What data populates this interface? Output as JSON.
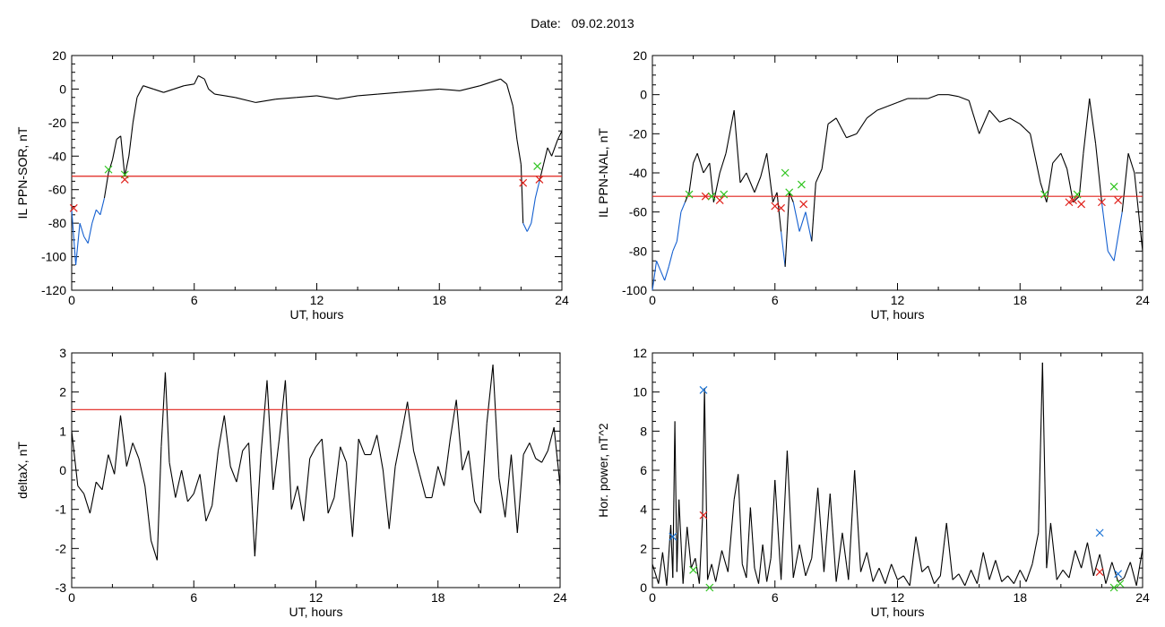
{
  "header": {
    "date_label": "Date:",
    "date_value": "09.02.2013"
  },
  "colors": {
    "data_line": "#000000",
    "below_threshold": "#1560d0",
    "threshold": "#e0201a",
    "mark_green": "#2fc41f",
    "mark_red": "#e0201a",
    "mark_blue": "#1a73d6"
  },
  "chart_data": [
    {
      "id": "sor",
      "type": "line",
      "ylabel": "IL PPN-SOR, nT",
      "xlabel": "UT, hours",
      "xlim": [
        0,
        24
      ],
      "ylim": [
        -120,
        20
      ],
      "xticks": [
        0,
        6,
        12,
        18,
        24
      ],
      "yticks": [
        -120,
        -100,
        -80,
        -60,
        -40,
        -20,
        0,
        20
      ],
      "threshold": -52,
      "series": [
        {
          "x": [
            0,
            0.2,
            0.4,
            0.6,
            0.8,
            1.0,
            1.2,
            1.4,
            1.6,
            1.8,
            2.0,
            2.2,
            2.4,
            2.6,
            2.8,
            3.0,
            3.2,
            3.5,
            4,
            4.5,
            5,
            5.5,
            6,
            6.2,
            6.5,
            6.7,
            7,
            8,
            9,
            10,
            11,
            12,
            13,
            14,
            15,
            16,
            17,
            18,
            19,
            20,
            20.5,
            21,
            21.3,
            21.6,
            21.8,
            22,
            22.1,
            22.3,
            22.5,
            22.7,
            22.9,
            23.1,
            23.3,
            23.5,
            23.8,
            24
          ],
          "y": [
            -72,
            -105,
            -80,
            -88,
            -92,
            -80,
            -72,
            -75,
            -65,
            -50,
            -42,
            -30,
            -28,
            -52,
            -40,
            -20,
            -5,
            2,
            0,
            -2,
            0,
            2,
            3,
            8,
            6,
            0,
            -3,
            -5,
            -8,
            -6,
            -5,
            -4,
            -6,
            -4,
            -3,
            -2,
            -1,
            0,
            -1,
            2,
            4,
            6,
            3,
            -10,
            -30,
            -45,
            -80,
            -85,
            -80,
            -65,
            -55,
            -45,
            -35,
            -40,
            -30,
            -25
          ]
        }
      ],
      "markers": [
        {
          "x": 1.8,
          "y": -48,
          "color": "green"
        },
        {
          "x": 2.6,
          "y": -51,
          "color": "green"
        },
        {
          "x": 2.6,
          "y": -54,
          "color": "red"
        },
        {
          "x": 0.1,
          "y": -71,
          "color": "red"
        },
        {
          "x": 22.1,
          "y": -56,
          "color": "red"
        },
        {
          "x": 22.8,
          "y": -46,
          "color": "green"
        },
        {
          "x": 22.9,
          "y": -54,
          "color": "red"
        }
      ]
    },
    {
      "id": "nal",
      "type": "line",
      "ylabel": "IL PPN-NAL, nT",
      "xlabel": "UT, hours",
      "xlim": [
        0,
        24
      ],
      "ylim": [
        -100,
        20
      ],
      "xticks": [
        0,
        6,
        12,
        18,
        24
      ],
      "yticks": [
        -100,
        -80,
        -60,
        -40,
        -20,
        0,
        20
      ],
      "threshold": -52,
      "series": [
        {
          "x": [
            0,
            0.2,
            0.4,
            0.6,
            0.8,
            1.0,
            1.2,
            1.4,
            1.6,
            1.8,
            2.0,
            2.2,
            2.5,
            2.8,
            3.0,
            3.3,
            3.6,
            4.0,
            4.3,
            4.6,
            5.0,
            5.3,
            5.6,
            5.9,
            6.1,
            6.3,
            6.5,
            6.7,
            6.9,
            7.2,
            7.5,
            7.8,
            8.0,
            8.3,
            8.6,
            9,
            9.5,
            10,
            10.5,
            11,
            11.5,
            12,
            12.5,
            13,
            13.5,
            14,
            14.5,
            15,
            15.5,
            16,
            16.5,
            17,
            17.5,
            18,
            18.5,
            19,
            19.3,
            19.6,
            20,
            20.3,
            20.6,
            20.9,
            21.1,
            21.4,
            21.7,
            22,
            22.3,
            22.6,
            23,
            23.3,
            23.6,
            24
          ],
          "y": [
            -100,
            -85,
            -90,
            -95,
            -88,
            -80,
            -75,
            -60,
            -55,
            -50,
            -35,
            -30,
            -40,
            -35,
            -55,
            -40,
            -30,
            -8,
            -45,
            -40,
            -50,
            -42,
            -30,
            -55,
            -50,
            -70,
            -88,
            -50,
            -55,
            -70,
            -60,
            -75,
            -45,
            -38,
            -15,
            -12,
            -22,
            -20,
            -12,
            -8,
            -6,
            -4,
            -2,
            -2,
            -2,
            0,
            0,
            -1,
            -3,
            -20,
            -8,
            -14,
            -12,
            -15,
            -20,
            -45,
            -55,
            -35,
            -30,
            -38,
            -55,
            -52,
            -30,
            -2,
            -25,
            -55,
            -80,
            -85,
            -60,
            -30,
            -40,
            -80
          ]
        }
      ],
      "markers": [
        {
          "x": 1.8,
          "y": -51,
          "color": "green"
        },
        {
          "x": 2.6,
          "y": -52,
          "color": "red"
        },
        {
          "x": 2.9,
          "y": -52,
          "color": "green"
        },
        {
          "x": 3.3,
          "y": -54,
          "color": "red"
        },
        {
          "x": 3.5,
          "y": -51,
          "color": "green"
        },
        {
          "x": 6.0,
          "y": -57,
          "color": "red"
        },
        {
          "x": 6.3,
          "y": -58,
          "color": "red"
        },
        {
          "x": 6.5,
          "y": -40,
          "color": "green"
        },
        {
          "x": 6.7,
          "y": -50,
          "color": "green"
        },
        {
          "x": 7.3,
          "y": -46,
          "color": "green"
        },
        {
          "x": 7.4,
          "y": -56,
          "color": "red"
        },
        {
          "x": 19.2,
          "y": -51,
          "color": "green"
        },
        {
          "x": 20.4,
          "y": -55,
          "color": "red"
        },
        {
          "x": 20.6,
          "y": -54,
          "color": "red"
        },
        {
          "x": 20.8,
          "y": -51,
          "color": "green"
        },
        {
          "x": 21.0,
          "y": -56,
          "color": "red"
        },
        {
          "x": 22.0,
          "y": -55,
          "color": "red"
        },
        {
          "x": 22.6,
          "y": -47,
          "color": "green"
        },
        {
          "x": 22.8,
          "y": -54,
          "color": "red"
        }
      ]
    },
    {
      "id": "deltax",
      "type": "line",
      "ylabel": "deltaX, nT",
      "xlabel": "UT, hours",
      "xlim": [
        0,
        24
      ],
      "ylim": [
        -3,
        3
      ],
      "xticks": [
        0,
        6,
        12,
        18,
        24
      ],
      "yticks": [
        -3,
        -2,
        -1,
        0,
        1,
        2,
        3
      ],
      "threshold": 1.55,
      "series": [
        {
          "x": [
            0,
            0.3,
            0.6,
            0.9,
            1.2,
            1.5,
            1.8,
            2.1,
            2.4,
            2.7,
            3.0,
            3.3,
            3.6,
            3.9,
            4.2,
            4.4,
            4.6,
            4.8,
            5.1,
            5.4,
            5.7,
            6.0,
            6.3,
            6.6,
            6.9,
            7.2,
            7.5,
            7.8,
            8.1,
            8.4,
            8.7,
            9.0,
            9.3,
            9.6,
            9.9,
            10.2,
            10.5,
            10.8,
            11.1,
            11.4,
            11.7,
            12.0,
            12.3,
            12.6,
            12.9,
            13.2,
            13.5,
            13.8,
            14.1,
            14.4,
            14.7,
            15.0,
            15.3,
            15.6,
            15.9,
            16.2,
            16.5,
            16.8,
            17.1,
            17.4,
            17.7,
            18.0,
            18.3,
            18.6,
            18.9,
            19.2,
            19.5,
            19.8,
            20.1,
            20.4,
            20.7,
            21.0,
            21.3,
            21.6,
            21.9,
            22.2,
            22.5,
            22.8,
            23.1,
            23.4,
            23.7,
            24
          ],
          "y": [
            1.0,
            -0.4,
            -0.6,
            -1.1,
            -0.3,
            -0.5,
            0.4,
            -0.1,
            1.4,
            0.1,
            0.7,
            0.3,
            -0.4,
            -1.8,
            -2.3,
            0.6,
            2.5,
            0.2,
            -0.7,
            0.0,
            -0.8,
            -0.6,
            -0.1,
            -1.3,
            -0.9,
            0.5,
            1.4,
            0.1,
            -0.3,
            0.5,
            0.7,
            -2.2,
            0.4,
            2.3,
            -0.5,
            0.8,
            2.3,
            -1.0,
            -0.4,
            -1.3,
            0.3,
            0.6,
            0.8,
            -1.1,
            -0.7,
            0.6,
            0.2,
            -1.7,
            0.8,
            0.4,
            0.4,
            0.9,
            0.0,
            -1.5,
            0.1,
            0.9,
            1.75,
            0.5,
            -0.1,
            -0.7,
            -0.7,
            0.1,
            -0.4,
            0.8,
            1.8,
            0.0,
            0.5,
            -0.8,
            -1.1,
            1.2,
            2.7,
            -0.2,
            -1.2,
            0.4,
            -1.6,
            0.4,
            0.7,
            0.3,
            0.2,
            0.5,
            1.1,
            -0.4
          ]
        }
      ],
      "markers": []
    },
    {
      "id": "power",
      "type": "line",
      "ylabel": "Hor. power, nT^2",
      "xlabel": "UT, hours",
      "xlim": [
        0,
        24
      ],
      "ylim": [
        0,
        12
      ],
      "xticks": [
        0,
        6,
        12,
        18,
        24
      ],
      "yticks": [
        0,
        2,
        4,
        6,
        8,
        10,
        12
      ],
      "threshold": null,
      "series": [
        {
          "x": [
            0,
            0.3,
            0.5,
            0.7,
            0.9,
            1.0,
            1.1,
            1.2,
            1.3,
            1.5,
            1.7,
            1.9,
            2.1,
            2.3,
            2.45,
            2.55,
            2.7,
            2.9,
            3.1,
            3.4,
            3.7,
            4.0,
            4.2,
            4.4,
            4.6,
            4.8,
            5.0,
            5.2,
            5.4,
            5.6,
            5.8,
            6.0,
            6.3,
            6.6,
            6.9,
            7.2,
            7.5,
            7.8,
            8.1,
            8.4,
            8.7,
            9.0,
            9.3,
            9.6,
            9.9,
            10.2,
            10.5,
            10.8,
            11.1,
            11.4,
            11.7,
            12.0,
            12.3,
            12.6,
            12.9,
            13.2,
            13.5,
            13.8,
            14.1,
            14.4,
            14.7,
            15.0,
            15.3,
            15.6,
            15.9,
            16.2,
            16.5,
            16.8,
            17.1,
            17.4,
            17.7,
            18.0,
            18.3,
            18.6,
            18.9,
            19.1,
            19.3,
            19.5,
            19.8,
            20.1,
            20.4,
            20.7,
            21.0,
            21.3,
            21.6,
            21.9,
            22.2,
            22.5,
            22.8,
            23.1,
            23.4,
            23.7,
            24
          ],
          "y": [
            1.2,
            0.2,
            1.8,
            0.1,
            3.2,
            0.5,
            8.5,
            0.8,
            4.5,
            0.2,
            3.1,
            1.0,
            1.5,
            0.2,
            3.5,
            10.2,
            0.4,
            1.2,
            0.3,
            1.9,
            0.8,
            4.5,
            5.8,
            1.2,
            0.5,
            4.1,
            1.0,
            0.2,
            2.2,
            0.3,
            1.5,
            5.5,
            0.4,
            7.0,
            0.5,
            2.2,
            0.6,
            1.5,
            5.1,
            0.8,
            4.8,
            0.3,
            2.8,
            0.4,
            6.0,
            0.8,
            1.8,
            0.3,
            1.0,
            0.2,
            1.2,
            0.4,
            0.6,
            0.1,
            2.6,
            0.8,
            1.1,
            0.2,
            0.6,
            3.3,
            0.4,
            0.7,
            0.1,
            0.9,
            0.2,
            1.8,
            0.4,
            1.4,
            0.3,
            0.6,
            0.2,
            0.9,
            0.3,
            1.2,
            2.8,
            11.5,
            1.0,
            3.3,
            0.4,
            0.9,
            0.5,
            1.9,
            1.0,
            2.3,
            0.6,
            1.7,
            0.2,
            1.3,
            0.3,
            0.5,
            1.3,
            0.1,
            2.0
          ]
        }
      ],
      "markers": [
        {
          "x": 1.0,
          "y": 2.6,
          "color": "blue"
        },
        {
          "x": 2.5,
          "y": 10.1,
          "color": "blue"
        },
        {
          "x": 2.5,
          "y": 3.7,
          "color": "red"
        },
        {
          "x": 2.0,
          "y": 0.9,
          "color": "green"
        },
        {
          "x": 2.8,
          "y": 0.0,
          "color": "green"
        },
        {
          "x": 21.9,
          "y": 2.8,
          "color": "blue"
        },
        {
          "x": 21.9,
          "y": 0.8,
          "color": "red"
        },
        {
          "x": 22.8,
          "y": 0.7,
          "color": "blue"
        },
        {
          "x": 22.9,
          "y": 0.2,
          "color": "green"
        },
        {
          "x": 22.6,
          "y": 0.0,
          "color": "green"
        }
      ]
    }
  ]
}
